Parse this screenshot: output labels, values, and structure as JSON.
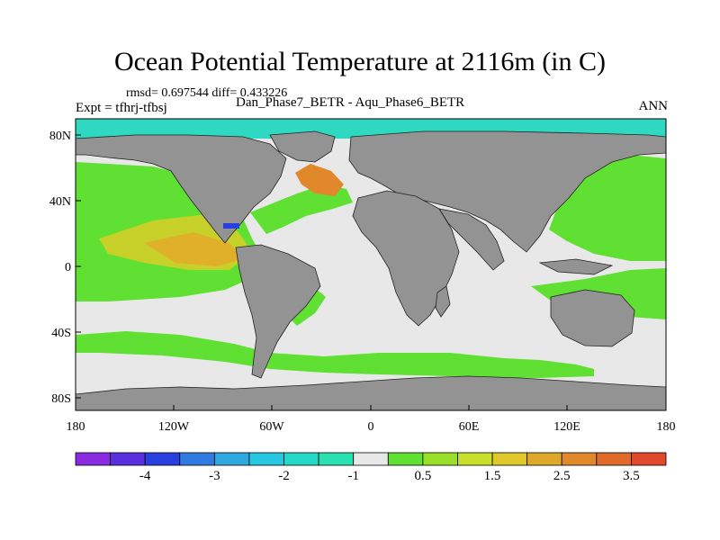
{
  "header": {
    "title": "Ocean Potential Temperature at 2116m (in C)",
    "stats": "rmsd= 0.697544 diff= 0.433226",
    "expt": "Expt = tfhrj-tfbsj",
    "case_label": "Dan_Phase7_BETR - Aqu_Phase6_BETR",
    "season": "ANN"
  },
  "map": {
    "y_ticks": [
      "80N",
      "40N",
      "0",
      "40S",
      "80S"
    ],
    "x_ticks": [
      "180",
      "120W",
      "60W",
      "0",
      "60E",
      "120E",
      "180"
    ]
  },
  "legend": {
    "colors": [
      "#8a2be2",
      "#5a2fe0",
      "#2a3fe0",
      "#2f7be0",
      "#2fa8e0",
      "#25c8e0",
      "#25d8c8",
      "#28e0b0",
      "#e8e8e8",
      "#5fe033",
      "#9ae02a",
      "#c8e02a",
      "#e0c82a",
      "#e0a82a",
      "#e0882a",
      "#e06a2a",
      "#e04a2a"
    ],
    "labels": [
      "-4",
      "-3",
      "-2",
      "-1",
      "0.5",
      "1.5",
      "2.5",
      "3.5"
    ]
  }
}
